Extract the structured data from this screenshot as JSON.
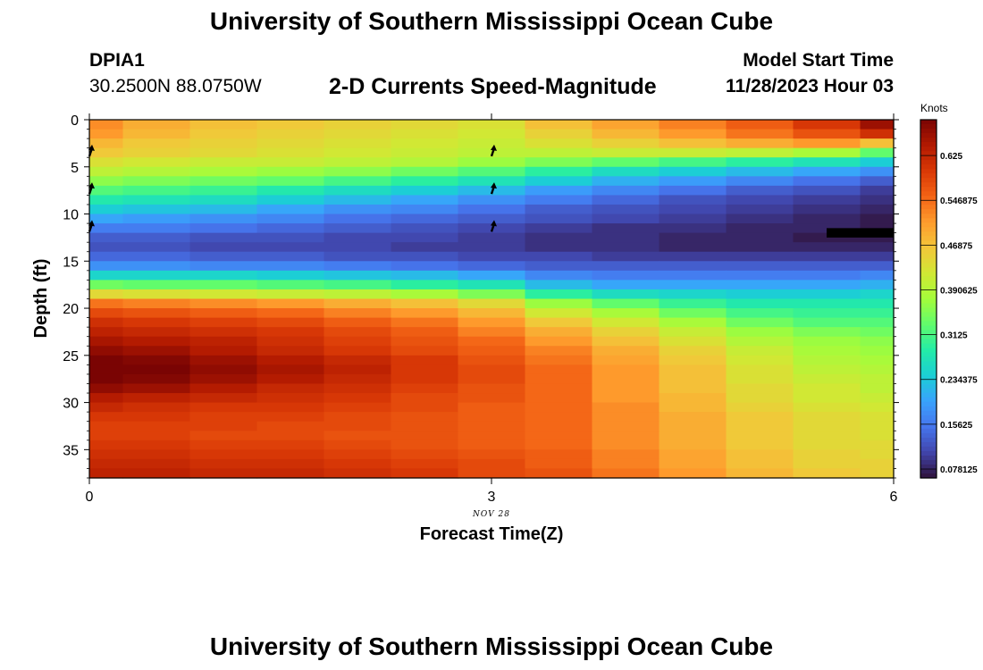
{
  "header": {
    "title": "University of Southern Mississippi Ocean Cube",
    "station_id": "DPIA1",
    "coords": "30.2500N  88.0750W",
    "plot_title": "2-D Currents Speed-Magnitude",
    "start_label": "Model Start Time",
    "start_value": "11/28/2023 Hour 03"
  },
  "footer": {
    "title": "University of Southern Mississippi Ocean Cube"
  },
  "chart_data": {
    "type": "heatmap",
    "title": "2-D Currents Speed-Magnitude",
    "xlabel": "Forecast Time(Z)",
    "ylabel": "Depth (ft)",
    "x_sublabel": "NOV 28",
    "xlim": [
      0,
      6
    ],
    "ylim": [
      0,
      38
    ],
    "y_reversed": true,
    "grid": false,
    "x_ticks": [
      0,
      3,
      6
    ],
    "x_tick_labels": [
      "0",
      "3",
      "6"
    ],
    "y_ticks": [
      0,
      5,
      10,
      15,
      20,
      25,
      30,
      35
    ],
    "y_tick_labels": [
      "0",
      "5",
      "10",
      "15",
      "20",
      "25",
      "30",
      "35"
    ],
    "time_columns": [
      0,
      0.5,
      1,
      1.5,
      2,
      2.5,
      3,
      3.5,
      4,
      4.5,
      5,
      5.5,
      6
    ],
    "depth_rows": [
      0.5,
      1.5,
      2.5,
      3.5,
      4.5,
      5.5,
      6.5,
      7.5,
      8.5,
      9.5,
      10.5,
      11.5,
      12.5,
      13.5,
      14.5,
      15.5,
      16.5,
      17.5,
      18.5,
      19.5,
      20.5,
      21.5,
      22.5,
      23.5,
      24.5,
      25.5,
      26.5,
      27.5,
      28.5,
      29.5,
      30.5,
      31.5,
      32.5,
      33.5,
      34.5,
      35.5,
      36.5,
      37.5
    ],
    "speed_knots": [
      [
        0.52,
        0.49,
        0.47,
        0.46,
        0.45,
        0.44,
        0.43,
        0.47,
        0.5,
        0.53,
        0.56,
        0.6,
        0.66
      ],
      [
        0.51,
        0.48,
        0.46,
        0.45,
        0.44,
        0.43,
        0.42,
        0.45,
        0.48,
        0.51,
        0.54,
        0.57,
        0.61
      ],
      [
        0.48,
        0.46,
        0.45,
        0.44,
        0.43,
        0.42,
        0.41,
        0.43,
        0.45,
        0.47,
        0.49,
        0.51,
        0.47
      ],
      [
        0.46,
        0.45,
        0.44,
        0.43,
        0.42,
        0.41,
        0.4,
        0.4,
        0.41,
        0.41,
        0.4,
        0.38,
        0.33
      ],
      [
        0.43,
        0.42,
        0.41,
        0.41,
        0.4,
        0.39,
        0.37,
        0.35,
        0.33,
        0.31,
        0.29,
        0.27,
        0.24
      ],
      [
        0.4,
        0.39,
        0.38,
        0.37,
        0.36,
        0.34,
        0.32,
        0.29,
        0.26,
        0.24,
        0.22,
        0.2,
        0.18
      ],
      [
        0.36,
        0.35,
        0.34,
        0.33,
        0.31,
        0.29,
        0.27,
        0.24,
        0.21,
        0.19,
        0.17,
        0.15,
        0.13
      ],
      [
        0.32,
        0.31,
        0.3,
        0.28,
        0.26,
        0.24,
        0.22,
        0.19,
        0.17,
        0.15,
        0.13,
        0.12,
        0.1
      ],
      [
        0.28,
        0.27,
        0.26,
        0.24,
        0.22,
        0.2,
        0.18,
        0.16,
        0.14,
        0.12,
        0.11,
        0.1,
        0.09
      ],
      [
        0.24,
        0.23,
        0.22,
        0.2,
        0.18,
        0.17,
        0.15,
        0.13,
        0.12,
        0.11,
        0.1,
        0.09,
        0.08
      ],
      [
        0.2,
        0.19,
        0.18,
        0.17,
        0.15,
        0.14,
        0.13,
        0.12,
        0.11,
        0.1,
        0.09,
        0.08,
        0.07
      ],
      [
        0.16,
        0.16,
        0.15,
        0.14,
        0.13,
        0.12,
        0.11,
        0.1,
        0.09,
        0.09,
        0.08,
        0.08,
        0.07
      ],
      [
        0.13,
        0.13,
        0.12,
        0.12,
        0.11,
        0.11,
        0.1,
        0.09,
        0.09,
        0.08,
        0.08,
        0.07,
        0.07
      ],
      [
        0.12,
        0.12,
        0.11,
        0.11,
        0.11,
        0.1,
        0.1,
        0.09,
        0.09,
        0.08,
        0.08,
        0.08,
        0.08
      ],
      [
        0.14,
        0.14,
        0.13,
        0.13,
        0.12,
        0.12,
        0.11,
        0.11,
        0.1,
        0.1,
        0.1,
        0.1,
        0.1
      ],
      [
        0.18,
        0.18,
        0.17,
        0.17,
        0.16,
        0.15,
        0.14,
        0.13,
        0.13,
        0.13,
        0.13,
        0.13,
        0.13
      ],
      [
        0.25,
        0.25,
        0.25,
        0.24,
        0.23,
        0.22,
        0.2,
        0.17,
        0.16,
        0.16,
        0.16,
        0.16,
        0.17
      ],
      [
        0.34,
        0.33,
        0.33,
        0.32,
        0.31,
        0.29,
        0.27,
        0.22,
        0.2,
        0.2,
        0.2,
        0.2,
        0.21
      ],
      [
        0.44,
        0.43,
        0.42,
        0.41,
        0.4,
        0.38,
        0.35,
        0.29,
        0.26,
        0.25,
        0.24,
        0.24,
        0.25
      ],
      [
        0.54,
        0.53,
        0.52,
        0.51,
        0.49,
        0.47,
        0.44,
        0.37,
        0.33,
        0.3,
        0.28,
        0.28,
        0.28
      ],
      [
        0.58,
        0.57,
        0.56,
        0.55,
        0.53,
        0.51,
        0.48,
        0.42,
        0.38,
        0.34,
        0.31,
        0.3,
        0.3
      ],
      [
        0.61,
        0.6,
        0.59,
        0.58,
        0.56,
        0.54,
        0.51,
        0.46,
        0.42,
        0.38,
        0.34,
        0.32,
        0.32
      ],
      [
        0.63,
        0.62,
        0.61,
        0.6,
        0.58,
        0.56,
        0.53,
        0.49,
        0.45,
        0.41,
        0.37,
        0.35,
        0.34
      ],
      [
        0.65,
        0.64,
        0.63,
        0.61,
        0.59,
        0.57,
        0.55,
        0.51,
        0.47,
        0.43,
        0.39,
        0.37,
        0.36
      ],
      [
        0.67,
        0.66,
        0.64,
        0.62,
        0.6,
        0.58,
        0.56,
        0.53,
        0.49,
        0.45,
        0.41,
        0.38,
        0.37
      ],
      [
        0.7,
        0.68,
        0.66,
        0.64,
        0.62,
        0.6,
        0.57,
        0.54,
        0.5,
        0.46,
        0.42,
        0.39,
        0.38
      ],
      [
        0.71,
        0.69,
        0.67,
        0.65,
        0.63,
        0.6,
        0.58,
        0.55,
        0.51,
        0.47,
        0.43,
        0.4,
        0.39
      ],
      [
        0.7,
        0.68,
        0.66,
        0.64,
        0.62,
        0.6,
        0.58,
        0.55,
        0.51,
        0.47,
        0.43,
        0.41,
        0.4
      ],
      [
        0.67,
        0.66,
        0.64,
        0.62,
        0.61,
        0.59,
        0.57,
        0.55,
        0.51,
        0.47,
        0.44,
        0.42,
        0.4
      ],
      [
        0.64,
        0.63,
        0.62,
        0.61,
        0.6,
        0.58,
        0.57,
        0.55,
        0.51,
        0.48,
        0.44,
        0.42,
        0.41
      ],
      [
        0.62,
        0.61,
        0.6,
        0.6,
        0.59,
        0.58,
        0.56,
        0.55,
        0.52,
        0.48,
        0.45,
        0.43,
        0.42
      ],
      [
        0.6,
        0.6,
        0.59,
        0.59,
        0.58,
        0.57,
        0.56,
        0.55,
        0.52,
        0.49,
        0.46,
        0.44,
        0.43
      ],
      [
        0.59,
        0.59,
        0.59,
        0.58,
        0.58,
        0.57,
        0.56,
        0.55,
        0.52,
        0.49,
        0.46,
        0.44,
        0.43
      ],
      [
        0.59,
        0.59,
        0.58,
        0.58,
        0.57,
        0.57,
        0.56,
        0.55,
        0.52,
        0.49,
        0.46,
        0.44,
        0.43
      ],
      [
        0.6,
        0.6,
        0.59,
        0.59,
        0.58,
        0.57,
        0.56,
        0.55,
        0.52,
        0.49,
        0.46,
        0.44,
        0.44
      ],
      [
        0.61,
        0.61,
        0.6,
        0.6,
        0.59,
        0.58,
        0.57,
        0.56,
        0.53,
        0.5,
        0.47,
        0.45,
        0.44
      ],
      [
        0.62,
        0.62,
        0.61,
        0.61,
        0.6,
        0.59,
        0.58,
        0.56,
        0.53,
        0.5,
        0.47,
        0.45,
        0.45
      ],
      [
        0.63,
        0.63,
        0.62,
        0.62,
        0.61,
        0.6,
        0.58,
        0.57,
        0.54,
        0.51,
        0.48,
        0.46,
        0.45
      ]
    ],
    "vectors": [
      {
        "time": 0,
        "depth": 3.5
      },
      {
        "time": 0,
        "depth": 7.5
      },
      {
        "time": 0,
        "depth": 11.5
      },
      {
        "time": 3,
        "depth": 3.5
      },
      {
        "time": 3,
        "depth": 7.5
      },
      {
        "time": 3,
        "depth": 11.5
      }
    ],
    "masked_cell": {
      "time": 6,
      "depth": 12
    },
    "colorbar": {
      "label": "Knots",
      "range": [
        0.0625,
        0.6875
      ],
      "ticks": [
        0.078125,
        0.15625,
        0.234375,
        0.3125,
        0.390625,
        0.46875,
        0.546875,
        0.625
      ],
      "tick_labels": [
        "0.078125",
        "0.15625",
        "0.234375",
        "0.3125",
        "0.390625",
        "0.46875",
        "0.546875",
        "0.625"
      ],
      "colors": [
        "#30123b",
        "#4145ab",
        "#4675ed",
        "#39a2fc",
        "#1bcfd4",
        "#24eca6",
        "#61fc6c",
        "#a4fc3b",
        "#d1e834",
        "#f3c63a",
        "#fe9b2d",
        "#f36315",
        "#d93806",
        "#b11901",
        "#7a0403"
      ]
    }
  }
}
